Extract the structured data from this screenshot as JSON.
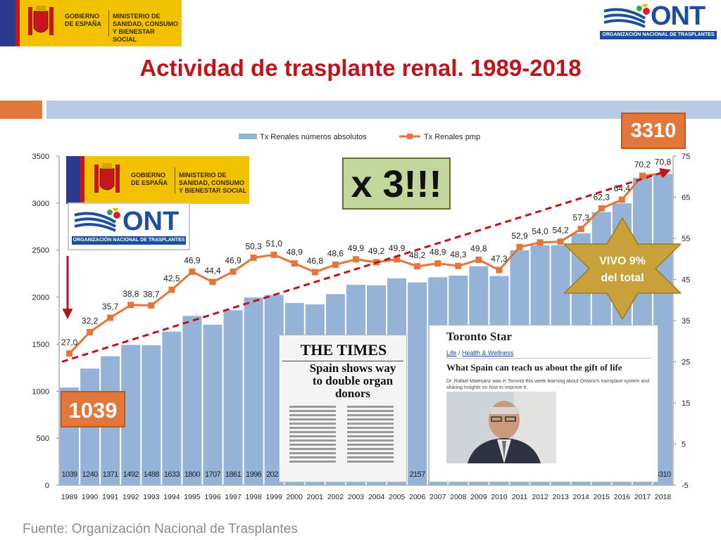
{
  "header": {
    "gov_logo": {
      "line1": "GOBIERNO DE ESPAÑA",
      "line2": "MINISTERIO DE SANIDAD, CONSUMO Y BIENESTAR SOCIAL"
    },
    "ont_logo": {
      "text": "ONT",
      "band": "ORGANIZACIÓN NACIONAL DE TRASPLANTES"
    },
    "title": "Actividad de trasplante renal. 1989-2018"
  },
  "source": "Fuente: Organización Nacional de Trasplantes",
  "overlays": {
    "badge_start": "1039",
    "badge_end": "3310",
    "multiplier": "x 3!!!",
    "star_line1": "VIVO 9%",
    "star_line2": "del total",
    "times": {
      "masthead": "THE TIMES",
      "headline": "Spain shows way to double organ donors"
    },
    "toronto_star": {
      "masthead": "Toronto Star",
      "crumb_life": "Life",
      "crumb_sep": " / ",
      "crumb_health": "Health & Wellness",
      "headline": "What Spain can teach us about the gift of life",
      "body": "Dr. Rafael Matesanz was in Toronto this week learning about Ontario's transplant system and sharing insights on how to improve it."
    }
  },
  "colors": {
    "bar": "#95b3d7",
    "line": "#e2763b",
    "trend": "#c0141c",
    "title": "#c0141c"
  },
  "chart_data": {
    "type": "bar+line",
    "categories": [
      "1989",
      "1990",
      "1991",
      "1992",
      "1993",
      "1994",
      "1995",
      "1996",
      "1997",
      "1998",
      "1999",
      "2000",
      "2001",
      "2002",
      "2003",
      "2004",
      "2005",
      "2006",
      "2007",
      "2008",
      "2009",
      "2010",
      "2011",
      "2012",
      "2013",
      "2014",
      "2015",
      "2016",
      "2017",
      "2018"
    ],
    "series": [
      {
        "name": "Tx Renales números absolutos",
        "type": "bar",
        "axis": "left",
        "values": [
          1039,
          1240,
          1371,
          1492,
          1488,
          1633,
          1800,
          1707,
          1861,
          1996,
          2023,
          1938,
          1924,
          2032,
          2131,
          2125,
          2200,
          2157,
          2211,
          2229,
          2328,
          2225,
          2498,
          2551,
          2552,
          2678,
          2905,
          2997,
          3269,
          3310
        ]
      },
      {
        "name": "Tx Renales pmp",
        "type": "line",
        "axis": "right",
        "values": [
          27.0,
          32.2,
          35.7,
          38.8,
          38.7,
          42.5,
          46.9,
          44.4,
          46.9,
          50.3,
          51.0,
          48.9,
          46.8,
          48.6,
          49.9,
          49.2,
          49.9,
          48.2,
          48.9,
          48.3,
          49.8,
          47.3,
          52.9,
          54.0,
          54.2,
          57.3,
          62.3,
          64.4,
          70.2,
          70.8
        ],
        "labels": [
          "27,0",
          "32,2",
          "35,7",
          "38,8",
          "38,7",
          "42,5",
          "46,9",
          "44,4",
          "46,9",
          "50,3",
          "51,0",
          "48,9",
          "46,8",
          "48,6",
          "49,9",
          "49,2",
          "49,9",
          "48,2",
          "48,9",
          "48,3",
          "49,8",
          "47,3",
          "52,9",
          "54,0",
          "54,2",
          "57,3",
          "62,3",
          "64,4",
          "70,2",
          "70,8"
        ]
      }
    ],
    "y_left": {
      "min": 0,
      "max": 3500,
      "ticks": [
        "0",
        "500",
        "1000",
        "1500",
        "2000",
        "2500",
        "3000",
        "3500"
      ]
    },
    "y_right": {
      "min": -5,
      "max": 75,
      "ticks": [
        "-5",
        "5",
        "15",
        "25",
        "35",
        "45",
        "55",
        "65",
        "75"
      ]
    },
    "legend_position": "top",
    "grid": false
  }
}
